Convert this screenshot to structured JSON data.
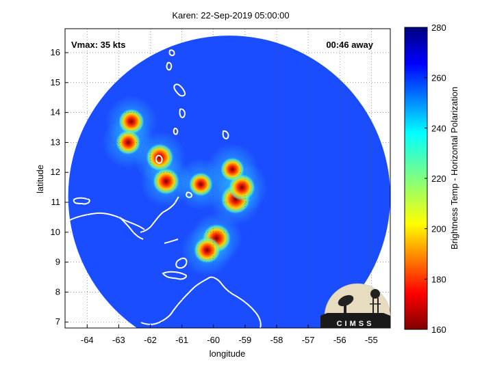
{
  "chart_data": {
    "type": "heatmap",
    "title": "Karen: 22-Sep-2019 05:00:00",
    "xlabel": "longitude",
    "ylabel": "latitude",
    "xlim": [
      -64.7,
      -54.4
    ],
    "ylim": [
      6.8,
      16.8
    ],
    "x_ticks": [
      -64,
      -63,
      -62,
      -61,
      -60,
      -59,
      -58,
      -57,
      -56,
      -55
    ],
    "y_ticks": [
      7,
      8,
      9,
      10,
      11,
      12,
      13,
      14,
      15,
      16
    ],
    "grid": true,
    "annotations": {
      "vmax": "Vmax: 35 kts",
      "time_offset": "00:46 away"
    },
    "colorbar": {
      "label": "Brightness Temp - Horizontal Polarization",
      "range": [
        160,
        280
      ],
      "ticks": [
        160,
        180,
        200,
        220,
        240,
        260,
        280
      ],
      "colormap": "jet_reversed"
    },
    "swath": {
      "center_lon": -59.5,
      "center_lat": 11.2,
      "radius_deg": 5.1
    },
    "convective_cells": [
      {
        "lon": -59.3,
        "lat": 11.1,
        "tb": 165
      },
      {
        "lon": -59.1,
        "lat": 11.5,
        "tb": 180
      },
      {
        "lon": -59.4,
        "lat": 12.1,
        "tb": 195
      },
      {
        "lon": -59.9,
        "lat": 9.8,
        "tb": 170
      },
      {
        "lon": -60.2,
        "lat": 9.4,
        "tb": 180
      },
      {
        "lon": -61.7,
        "lat": 12.5,
        "tb": 175
      },
      {
        "lon": -61.5,
        "lat": 11.7,
        "tb": 180
      },
      {
        "lon": -62.6,
        "lat": 13.7,
        "tb": 185
      },
      {
        "lon": -60.4,
        "lat": 11.6,
        "tb": 195
      },
      {
        "lon": -62.7,
        "lat": 13.0,
        "tb": 190
      }
    ],
    "colors": {
      "background_tb": "#1a4dff",
      "coast": "#ffffff"
    }
  },
  "logo": {
    "text": "CIMSS"
  }
}
